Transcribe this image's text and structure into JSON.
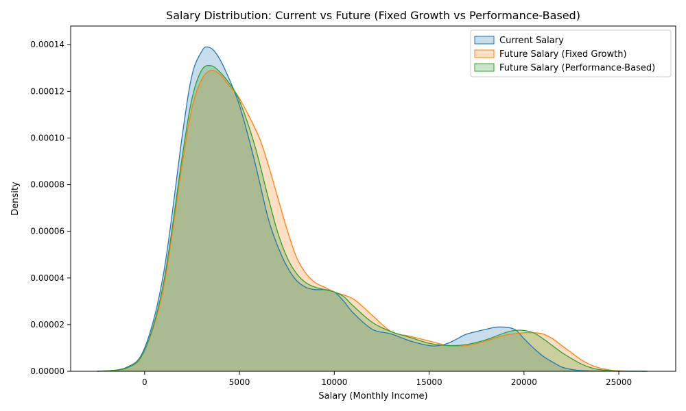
{
  "chart_data": {
    "type": "area",
    "title": "Salary Distribution: Current vs Future (Fixed Growth vs Performance-Based)",
    "xlabel": "Salary (Monthly Income)",
    "ylabel": "Density",
    "xlim": [
      -3900,
      28000
    ],
    "ylim": [
      0,
      0.000148
    ],
    "xticks": [
      0,
      5000,
      10000,
      15000,
      20000,
      25000
    ],
    "xtick_labels": [
      "0",
      "5000",
      "10000",
      "15000",
      "20000",
      "25000"
    ],
    "yticks": [
      0,
      2e-05,
      4e-05,
      6e-05,
      8e-05,
      0.0001,
      0.00012,
      0.00014
    ],
    "ytick_labels": [
      "0.00000",
      "0.00002",
      "0.00004",
      "0.00006",
      "0.00008",
      "0.00010",
      "0.00012",
      "0.00014"
    ],
    "grid": false,
    "legend_position": "top-right",
    "series": [
      {
        "name": "Current Salary",
        "color": "#1f77b4",
        "x": [
          -2500,
          -1000,
          0,
          1000,
          2000,
          2500,
          3000,
          3300,
          3700,
          4200,
          5000,
          5800,
          6500,
          7000,
          7500,
          8000,
          8500,
          9000,
          9500,
          10000,
          10500,
          11000,
          12000,
          13000,
          14000,
          15000,
          15500,
          16000,
          16500,
          17000,
          18000,
          18700,
          19500,
          20000,
          20500,
          21000,
          21500,
          22000,
          22500,
          23000,
          24000,
          25000,
          26500
        ],
        "y": [
          0,
          1.5e-06,
          1e-05,
          4.2e-05,
          0.000102,
          0.000127,
          0.000137,
          0.000139,
          0.000137,
          0.00013,
          0.000114,
          9e-05,
          6.6e-05,
          5.4e-05,
          4.5e-05,
          3.9e-05,
          3.6e-05,
          3.5e-05,
          3.5e-05,
          3.4e-05,
          3e-05,
          2.5e-05,
          1.8e-05,
          1.6e-05,
          1.3e-05,
          1.1e-05,
          1.1e-05,
          1.2e-05,
          1.4e-05,
          1.6e-05,
          1.8e-05,
          1.9e-05,
          1.8e-05,
          1.4e-05,
          1e-05,
          6.5e-06,
          4e-06,
          1.8e-06,
          8e-07,
          3e-07,
          1e-07,
          0,
          0
        ]
      },
      {
        "name": "Future Salary (Fixed Growth)",
        "color": "#ff7f0e",
        "x": [
          -2500,
          -1000,
          0,
          1000,
          2000,
          2500,
          3000,
          3500,
          4000,
          4500,
          5000,
          6000,
          6500,
          7000,
          7500,
          8000,
          8500,
          9000,
          9500,
          10000,
          11000,
          12000,
          13000,
          14000,
          15000,
          16000,
          17000,
          18000,
          19000,
          20000,
          20500,
          21000,
          21500,
          22000,
          22500,
          23000,
          23500,
          24000,
          24500,
          25000,
          26500
        ],
        "y": [
          0,
          1.2e-06,
          9e-06,
          3.6e-05,
          9e-05,
          0.000113,
          0.000125,
          0.000129,
          0.000127,
          0.000122,
          0.000117,
          0.000101,
          8.9e-05,
          7.5e-05,
          6.1e-05,
          4.9e-05,
          4.2e-05,
          3.8e-05,
          3.6e-05,
          3.4e-05,
          3.1e-05,
          2.4e-05,
          1.7e-05,
          1.5e-05,
          1.3e-05,
          1.1e-05,
          1.1e-05,
          1.3e-05,
          1.55e-05,
          1.65e-05,
          1.65e-05,
          1.6e-05,
          1.4e-05,
          1.1e-05,
          8e-06,
          5e-06,
          2.8e-06,
          1.4e-06,
          6e-07,
          2e-07,
          0
        ]
      },
      {
        "name": "Future Salary (Performance-Based)",
        "color": "#2ca02c",
        "x": [
          -2500,
          -1000,
          0,
          1000,
          2000,
          2500,
          3000,
          3500,
          4000,
          4500,
          5000,
          5800,
          6500,
          7000,
          7500,
          8000,
          8500,
          9000,
          9500,
          10000,
          10500,
          11000,
          12000,
          13000,
          14000,
          15000,
          16000,
          17000,
          18000,
          19000,
          19500,
          20000,
          20500,
          21000,
          21500,
          22000,
          22500,
          23000,
          23500,
          24000,
          25000,
          26500
        ],
        "y": [
          0,
          1.2e-06,
          9e-06,
          3.8e-05,
          9.3e-05,
          0.000117,
          0.000129,
          0.000131,
          0.000128,
          0.000123,
          0.000116,
          9.7e-05,
          7.5e-05,
          6e-05,
          4.9e-05,
          4.2e-05,
          3.8e-05,
          3.6e-05,
          3.5e-05,
          3.4e-05,
          3.2e-05,
          2.8e-05,
          2.1e-05,
          1.7e-05,
          1.45e-05,
          1.2e-05,
          1.1e-05,
          1.15e-05,
          1.35e-05,
          1.65e-05,
          1.75e-05,
          1.75e-05,
          1.65e-05,
          1.4e-05,
          1.1e-05,
          8e-06,
          5.5e-06,
          3.2e-06,
          1.6e-06,
          7e-07,
          1e-07,
          0
        ]
      }
    ]
  }
}
